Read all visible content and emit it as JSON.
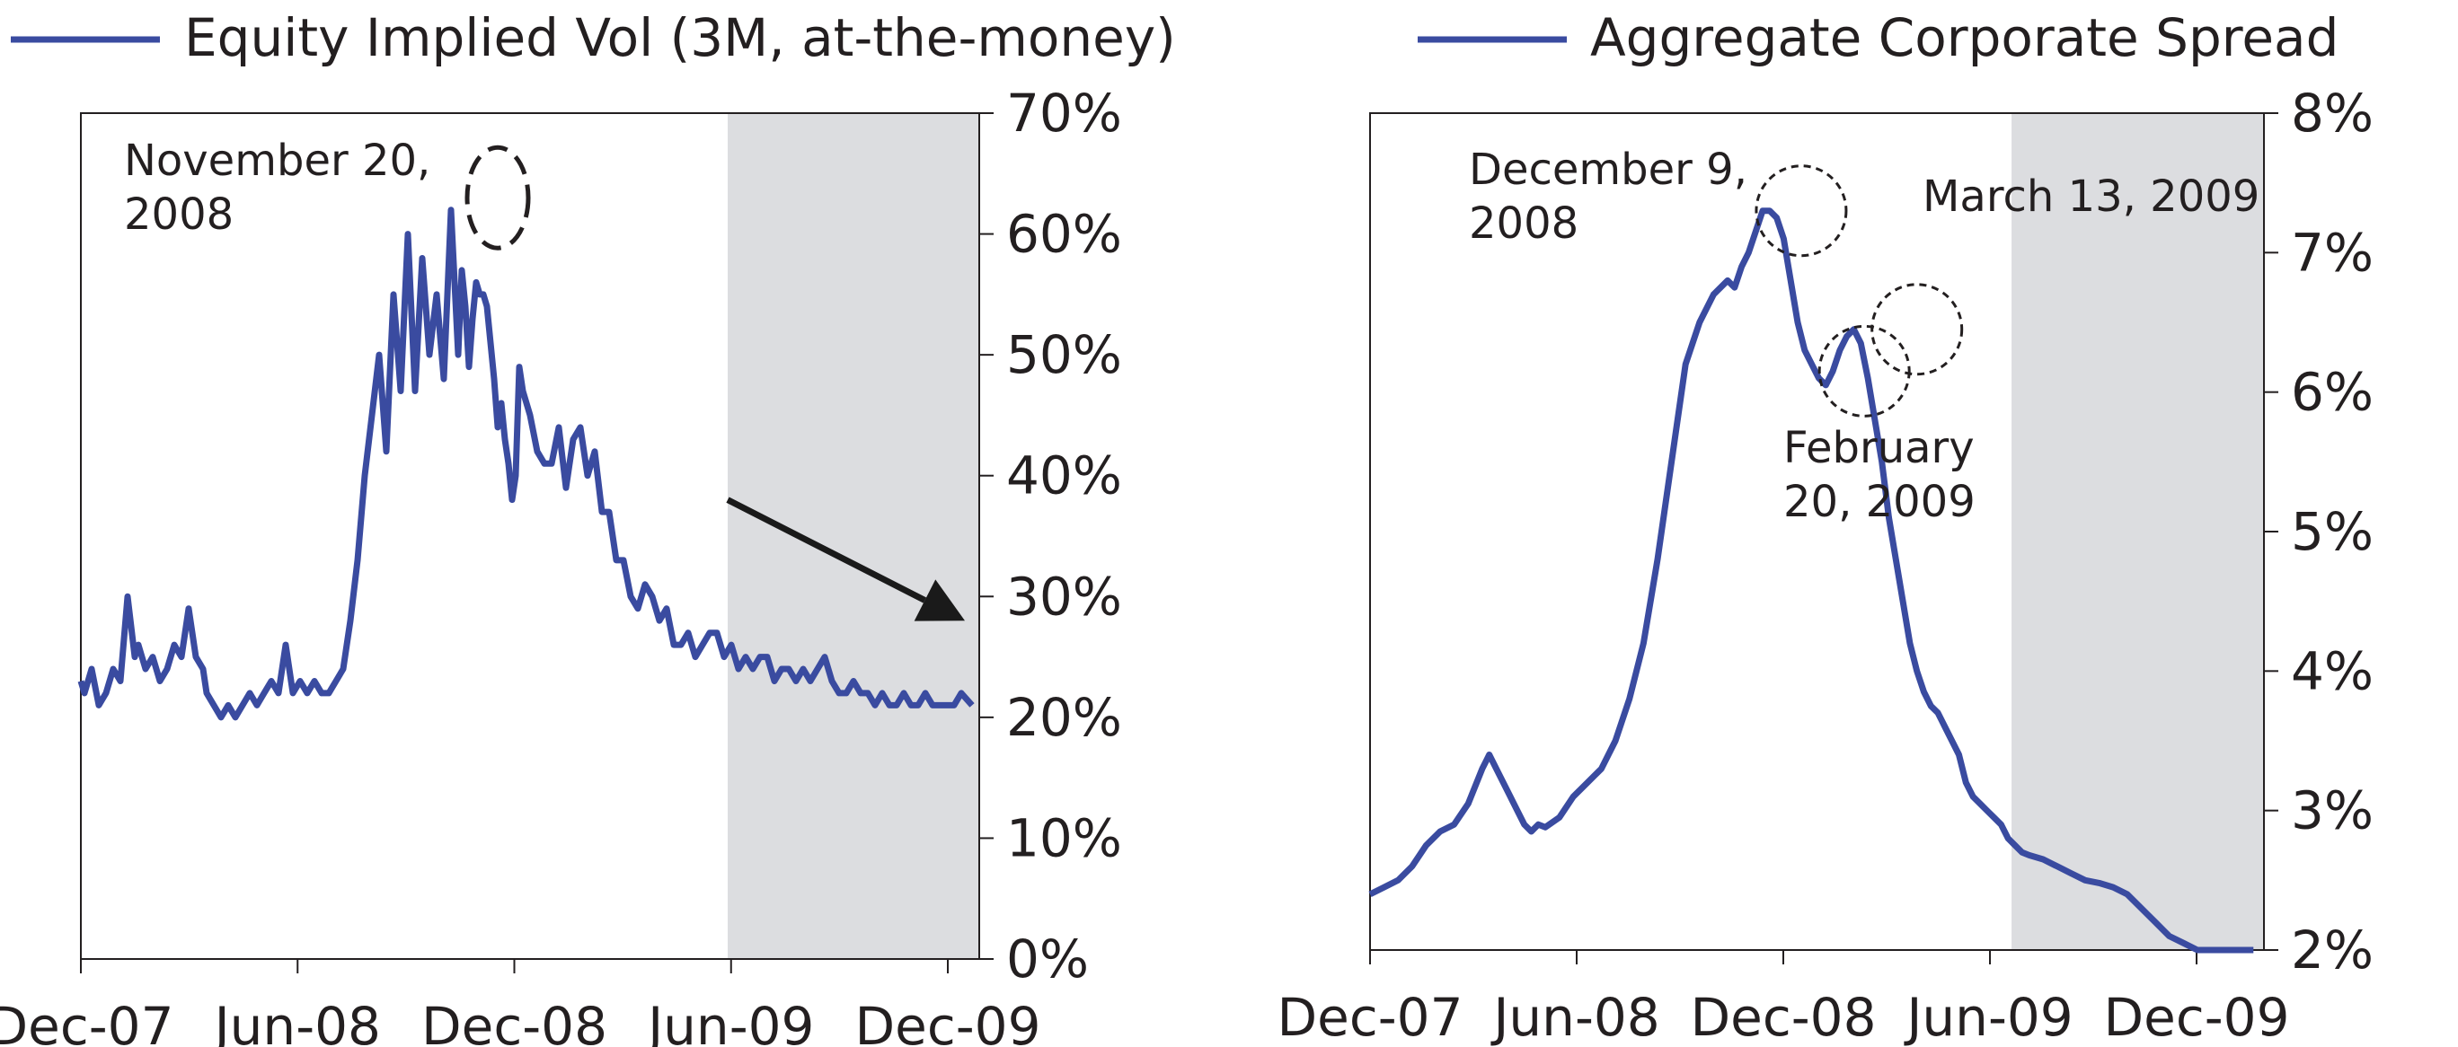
{
  "colors": {
    "series": "#3a4ba0",
    "shade": "#dcdde0",
    "axis": "#231f20",
    "arrow": "#1a1a1a"
  },
  "chart_data": [
    {
      "type": "line",
      "y_axis_side": "right",
      "legend": "Equity Implied Vol (3M, at-the-money)",
      "legend_position": "top-left",
      "x_ticks": [
        "Dec-07",
        "Jun-08",
        "Dec-08",
        "Jun-09",
        "Dec-09"
      ],
      "y_ticks": [
        "0%",
        "10%",
        "20%",
        "30%",
        "40%",
        "50%",
        "60%",
        "70%"
      ],
      "ylim": [
        0,
        70
      ],
      "xlim": [
        0,
        25
      ],
      "shaded_region": [
        18,
        25
      ],
      "annotations": [
        {
          "text": "November 20,",
          "text2": "2008",
          "circle": [
            11.6,
            63
          ]
        }
      ],
      "arrow": {
        "from": [
          18,
          38
        ],
        "to": [
          24.6,
          28
        ]
      },
      "series": [
        {
          "name": "Equity Implied Vol (3M, at-the-money)",
          "x": [
            0,
            0.1,
            0.3,
            0.5,
            0.7,
            0.9,
            1.1,
            1.3,
            1.5,
            1.6,
            1.8,
            2.0,
            2.2,
            2.4,
            2.6,
            2.8,
            3.0,
            3.2,
            3.4,
            3.5,
            3.7,
            3.9,
            4.1,
            4.3,
            4.5,
            4.7,
            4.9,
            5.1,
            5.3,
            5.5,
            5.7,
            5.9,
            6.1,
            6.3,
            6.5,
            6.7,
            6.9,
            7.1,
            7.3,
            7.5,
            7.7,
            7.9,
            8.1,
            8.3,
            8.5,
            8.7,
            8.9,
            9.1,
            9.3,
            9.5,
            9.7,
            9.9,
            10.1,
            10.3,
            10.5,
            10.6,
            10.7,
            10.8,
            10.9,
            11.0,
            11.1,
            11.2,
            11.3,
            11.4,
            11.5,
            11.6,
            11.7,
            11.8,
            11.9,
            12.0,
            12.1,
            12.2,
            12.3,
            12.5,
            12.7,
            12.9,
            13.1,
            13.3,
            13.5,
            13.7,
            13.9,
            14.1,
            14.3,
            14.5,
            14.7,
            14.9,
            15.1,
            15.3,
            15.5,
            15.7,
            15.9,
            16.1,
            16.3,
            16.5,
            16.7,
            16.9,
            17.1,
            17.3,
            17.5,
            17.7,
            17.9,
            18.1,
            18.3,
            18.5,
            18.7,
            18.9,
            19.1,
            19.3,
            19.5,
            19.7,
            19.9,
            20.1,
            20.3,
            20.5,
            20.7,
            20.9,
            21.1,
            21.3,
            21.5,
            21.7,
            21.9,
            22.1,
            22.3,
            22.5,
            22.7,
            22.9,
            23.1,
            23.3,
            23.5,
            23.7,
            23.9,
            24.1,
            24.3,
            24.5,
            24.8
          ],
          "y": [
            23,
            22,
            24,
            21,
            22,
            24,
            23,
            30,
            25,
            26,
            24,
            25,
            23,
            24,
            26,
            25,
            29,
            25,
            24,
            22,
            21,
            20,
            21,
            20,
            21,
            22,
            21,
            22,
            23,
            22,
            26,
            22,
            23,
            22,
            23,
            22,
            22,
            23,
            24,
            28,
            33,
            40,
            45,
            50,
            42,
            55,
            47,
            60,
            47,
            58,
            50,
            55,
            48,
            62,
            50,
            57,
            54,
            49,
            53,
            56,
            55,
            55,
            54,
            51,
            48,
            44,
            46,
            43,
            41,
            38,
            40,
            49,
            47,
            45,
            42,
            41,
            41,
            44,
            39,
            43,
            44,
            40,
            42,
            37,
            37,
            33,
            33,
            30,
            29,
            31,
            30,
            28,
            29,
            26,
            26,
            27,
            25,
            26,
            27,
            27,
            25,
            26,
            24,
            25,
            24,
            25,
            25,
            23,
            24,
            24,
            23,
            24,
            23,
            24,
            25,
            23,
            22,
            22,
            23,
            22,
            22,
            21,
            22,
            21,
            21,
            22,
            21,
            21,
            22,
            21,
            21,
            21,
            21,
            22,
            21
          ]
        }
      ]
    },
    {
      "type": "line",
      "y_axis_side": "right",
      "legend": "Aggregate Corporate Spread",
      "legend_position": "top-left",
      "x_ticks": [
        "Dec-07",
        "Jun-08",
        "Dec-08",
        "Jun-09",
        "Dec-09"
      ],
      "y_ticks": [
        "2%",
        "3%",
        "4%",
        "5%",
        "6%",
        "7%",
        "8%"
      ],
      "ylim": [
        2,
        8
      ],
      "xlim": [
        0,
        25.5
      ],
      "shaded_region": [
        18.3,
        25.5
      ],
      "annotations": [
        {
          "text": "December 9,",
          "text2": "2008",
          "circle": [
            12.3,
            7.3
          ]
        },
        {
          "text": "March 13, 2009",
          "text2": "",
          "circle": [
            15.6,
            6.45
          ]
        },
        {
          "text": "February",
          "text2": "20, 2009",
          "circle": [
            14.1,
            6.15
          ]
        }
      ],
      "series": [
        {
          "name": "Aggregate Corporate Spread",
          "x": [
            0,
            0.4,
            0.8,
            1.2,
            1.6,
            2.0,
            2.4,
            2.8,
            3.2,
            3.4,
            3.6,
            3.8,
            4.0,
            4.2,
            4.4,
            4.6,
            4.8,
            5.0,
            5.4,
            5.8,
            6.2,
            6.6,
            7.0,
            7.4,
            7.8,
            8.2,
            8.6,
            9.0,
            9.4,
            9.8,
            10.2,
            10.4,
            10.6,
            10.8,
            11.0,
            11.2,
            11.4,
            11.6,
            11.8,
            12.0,
            12.2,
            12.4,
            12.6,
            12.8,
            13.0,
            13.2,
            13.4,
            13.6,
            13.8,
            14.0,
            14.2,
            14.4,
            14.6,
            14.8,
            15.0,
            15.2,
            15.4,
            15.6,
            15.8,
            16.0,
            16.2,
            16.4,
            16.6,
            16.8,
            17.0,
            17.2,
            17.4,
            17.6,
            17.8,
            18.0,
            18.2,
            18.4,
            18.6,
            18.8,
            19.2,
            19.6,
            20.0,
            20.4,
            20.8,
            21.2,
            21.6,
            22.0,
            22.4,
            22.8,
            23.2,
            23.6,
            24.0,
            24.4,
            24.8,
            25.2
          ],
          "y": [
            2.4,
            2.45,
            2.5,
            2.6,
            2.75,
            2.85,
            2.9,
            3.05,
            3.3,
            3.4,
            3.3,
            3.2,
            3.1,
            3.0,
            2.9,
            2.85,
            2.9,
            2.88,
            2.95,
            3.1,
            3.2,
            3.3,
            3.5,
            3.8,
            4.2,
            4.8,
            5.5,
            6.2,
            6.5,
            6.7,
            6.8,
            6.75,
            6.9,
            7.0,
            7.15,
            7.3,
            7.3,
            7.25,
            7.1,
            6.8,
            6.5,
            6.3,
            6.2,
            6.1,
            6.05,
            6.15,
            6.3,
            6.4,
            6.45,
            6.35,
            6.1,
            5.8,
            5.5,
            5.1,
            4.8,
            4.5,
            4.2,
            4.0,
            3.85,
            3.75,
            3.7,
            3.6,
            3.5,
            3.4,
            3.2,
            3.1,
            3.05,
            3.0,
            2.95,
            2.9,
            2.8,
            2.75,
            2.7,
            2.68,
            2.65,
            2.6,
            2.55,
            2.5,
            2.48,
            2.45,
            2.4,
            2.3,
            2.2,
            2.1,
            2.05,
            2.0,
            2.0,
            2.0,
            2.0,
            2.0
          ]
        }
      ]
    }
  ]
}
